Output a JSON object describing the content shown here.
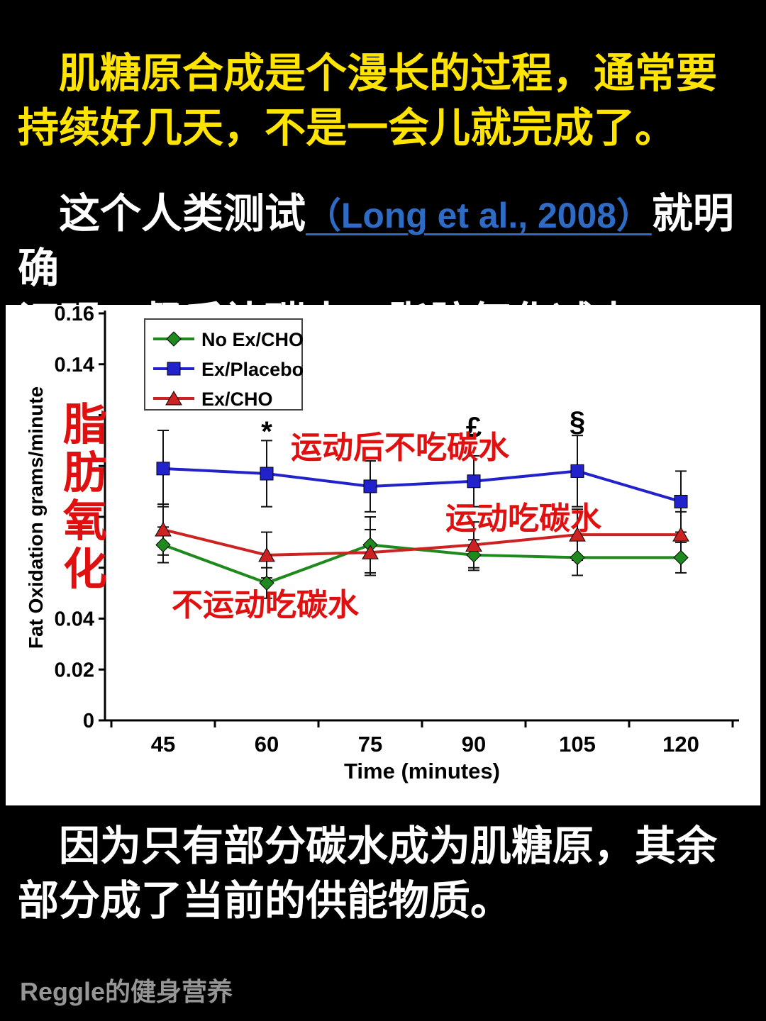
{
  "page": {
    "p1": {
      "lines": [
        "肌糖原合成是个漫长的过程，通常要",
        "持续好几天，不是一会儿就完成了。"
      ]
    },
    "p2": {
      "prefix": "这个人类测试",
      "citation": "（Long et al., 2008）",
      "after_citation": "就明确",
      "line2": "证明，餐后补碳水，脂肪氧化减少。"
    },
    "p3": {
      "lines": [
        "因为只有部分碳水成为肌糖原，其余",
        "部分成了当前的供能物质。"
      ]
    },
    "watermark": "Reggle的健身营养"
  },
  "colors": {
    "highlight_yellow": "#ffe400",
    "body_white": "#ffffff",
    "citation_blue": "#2e6bc4",
    "annotation_red": "#e01010",
    "axis_black": "#000000"
  },
  "chart_data": {
    "type": "line",
    "x": [
      45,
      60,
      75,
      90,
      105,
      120
    ],
    "xlabel": "Time (minutes)",
    "ylabel": "Fat Oxidation grams/minute",
    "ylim": [
      0,
      0.16
    ],
    "ytick_step": 0.02,
    "visible_ytick_labels": [
      "0",
      "0.02",
      "0.04",
      "0.14",
      "0.16"
    ],
    "grid": false,
    "legend_position": "top-left",
    "series": [
      {
        "name": "No Ex/CHO",
        "marker": "diamond",
        "color": "#1e8a1e",
        "values": [
          0.069,
          0.054,
          0.069,
          0.065,
          0.064,
          0.064
        ],
        "errors": [
          0.007,
          0.006,
          0.011,
          0.006,
          0.007,
          0.006
        ]
      },
      {
        "name": "Ex/Placebo",
        "marker": "square",
        "color": "#2222cc",
        "values": [
          0.099,
          0.097,
          0.092,
          0.094,
          0.098,
          0.086
        ],
        "errors": [
          0.015,
          0.013,
          0.01,
          0.01,
          0.014,
          0.012
        ]
      },
      {
        "name": "Ex/CHO",
        "marker": "triangle",
        "color": "#cc2222",
        "values": [
          0.075,
          0.065,
          0.066,
          0.069,
          0.073,
          0.073
        ],
        "errors": [
          0.01,
          0.009,
          0.009,
          0.009,
          0.01,
          0.009
        ]
      }
    ],
    "significance_marks": [
      {
        "symbol": "*",
        "x": 60,
        "y_svg": 192
      },
      {
        "symbol": "£",
        "x": 90,
        "y_svg": 186
      },
      {
        "symbol": "§",
        "x": 105,
        "y_svg": 178
      }
    ],
    "annotations": [
      {
        "text": "运动后不吃碳水",
        "x": 402,
        "y": 216,
        "size": 44,
        "color": "#e01010"
      },
      {
        "text": "运动吃碳水",
        "x": 620,
        "y": 316,
        "size": 44,
        "color": "#e01010"
      },
      {
        "text": "不运动吃碳水",
        "x": 234,
        "y": 438,
        "size": 44,
        "color": "#e01010"
      }
    ],
    "side_label": "脂肪氧化",
    "side_label_color": "#e01010"
  }
}
